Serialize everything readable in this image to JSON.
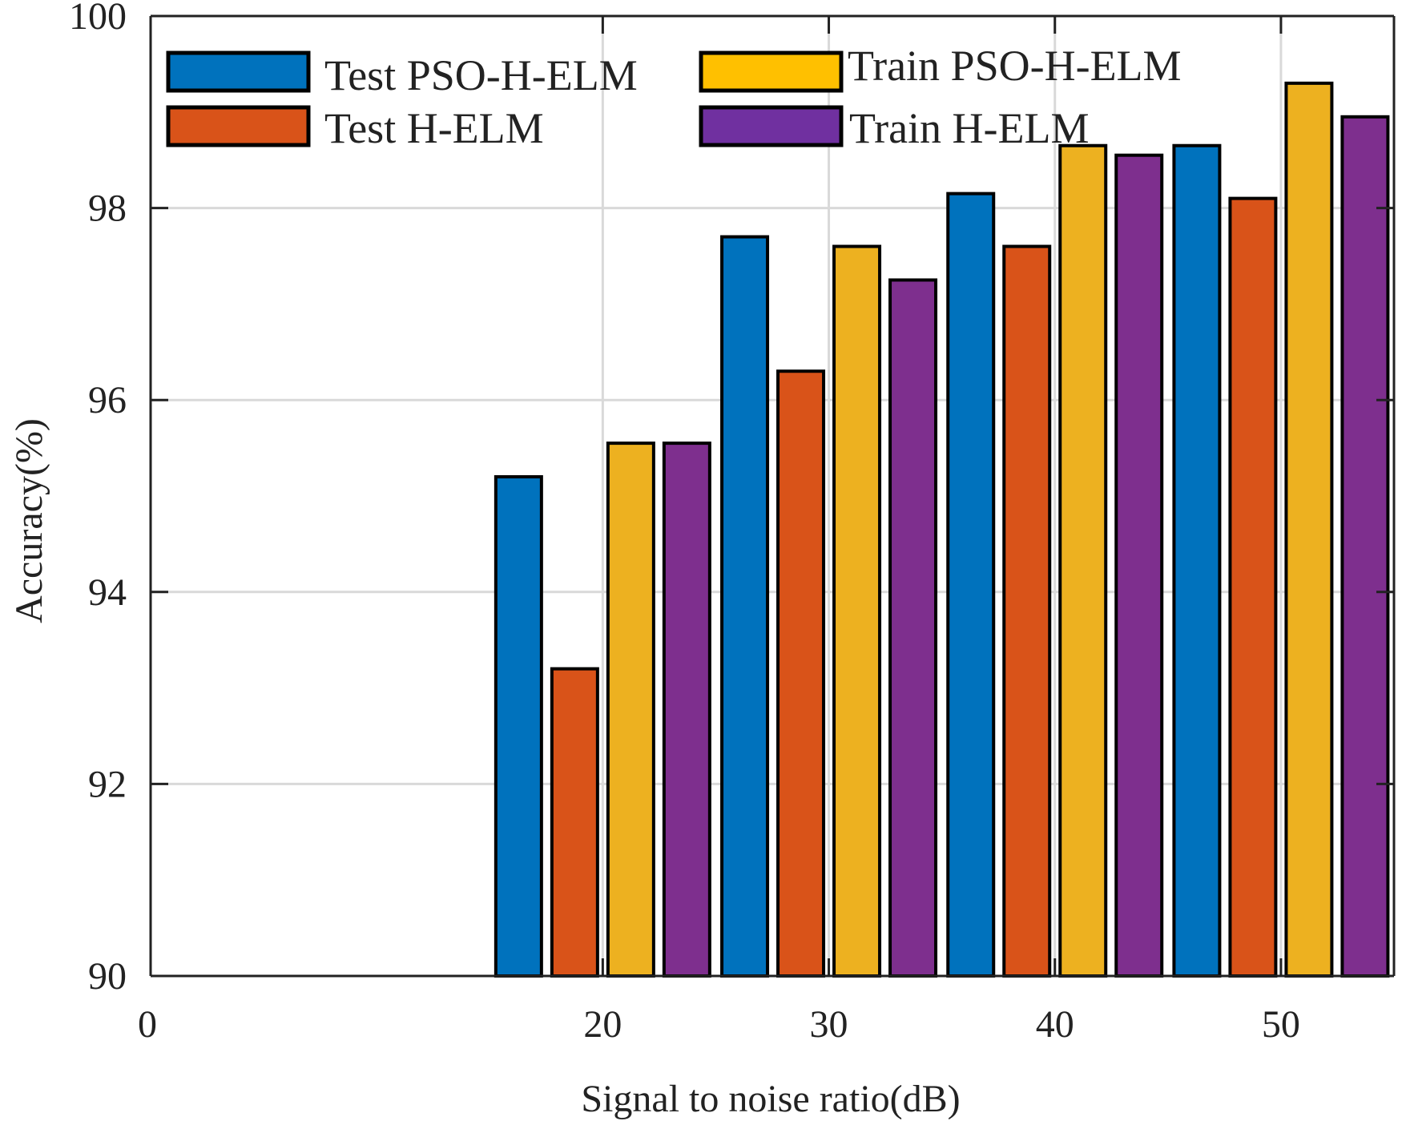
{
  "chart_data": {
    "type": "bar",
    "title": "",
    "xlabel": "Signal to noise ratio(dB)",
    "ylabel": "Accuracy(%)",
    "ylim": [
      90,
      100
    ],
    "xlim": [
      0,
      55
    ],
    "y_ticks": [
      "90",
      "92",
      "94",
      "96",
      "98",
      "100"
    ],
    "x_ticks": [
      "0",
      "20",
      "30",
      "40",
      "50"
    ],
    "categories": [
      "20",
      "30",
      "40",
      "50"
    ],
    "grid": true,
    "legend_position": "top",
    "series": [
      {
        "name": "Test PSO-H-ELM",
        "color": "#0072BD",
        "values": [
          95.2,
          97.7,
          98.15,
          98.65
        ]
      },
      {
        "name": "Test H-ELM",
        "color": "#D95319",
        "values": [
          93.2,
          96.3,
          97.6,
          98.1
        ]
      },
      {
        "name": "Train PSO-H-ELM",
        "color": "#EDB120",
        "values": [
          95.55,
          97.6,
          98.65,
          99.3
        ]
      },
      {
        "name": "Train H-ELM",
        "color": "#7E2F8E",
        "values": [
          95.55,
          97.25,
          98.55,
          98.95
        ]
      }
    ],
    "legend_swatch_colors": [
      "#0072BD",
      "#D95319",
      "#FFC000",
      "#7030A0"
    ]
  }
}
